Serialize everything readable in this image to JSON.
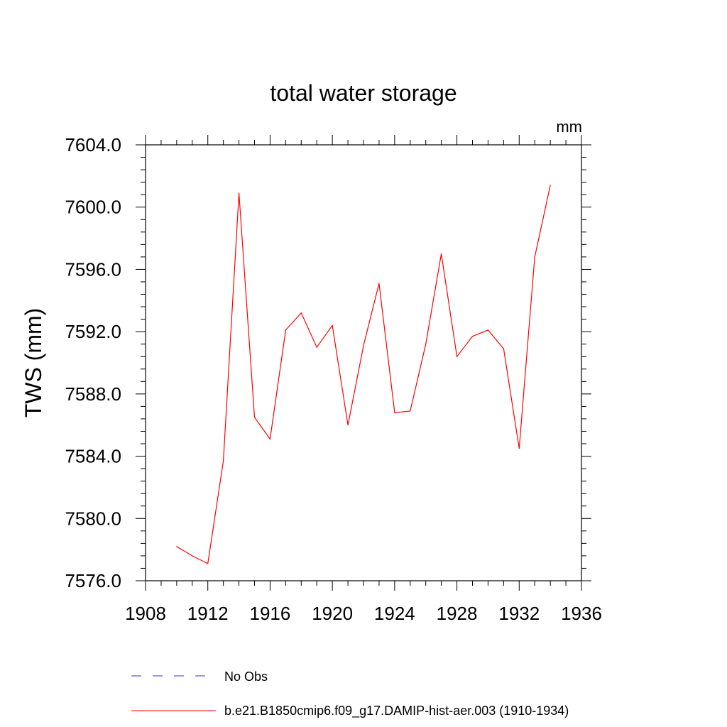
{
  "chart_data": {
    "type": "line",
    "title": "total water storage",
    "units_label": "mm",
    "xlabel": "",
    "ylabel": "TWS  (mm)",
    "xlim": [
      1908,
      1936
    ],
    "ylim": [
      7576.0,
      7604.0
    ],
    "x_ticks": [
      "1908",
      "1912",
      "1916",
      "1920",
      "1924",
      "1928",
      "1932",
      "1936"
    ],
    "y_ticks": [
      "7576.0",
      "7580.0",
      "7584.0",
      "7588.0",
      "7592.0",
      "7596.0",
      "7600.0",
      "7604.0"
    ],
    "x_tick_values": [
      1908,
      1912,
      1916,
      1920,
      1924,
      1928,
      1932,
      1936
    ],
    "y_tick_values": [
      7576,
      7580,
      7584,
      7588,
      7592,
      7596,
      7600,
      7604
    ],
    "grid": false,
    "legend_position": "bottom",
    "series": [
      {
        "name": "b.e21.B1850cmip6.f09_g17.DAMIP-hist-aer.003 (1910-1934)",
        "color": "#ff0000",
        "style": "solid",
        "x": [
          1910,
          1911,
          1912,
          1913,
          1914,
          1915,
          1916,
          1917,
          1918,
          1919,
          1920,
          1921,
          1922,
          1923,
          1924,
          1925,
          1926,
          1927,
          1928,
          1929,
          1930,
          1931,
          1932,
          1933,
          1934
        ],
        "y": [
          7578.2,
          7577.6,
          7577.1,
          7583.7,
          7600.9,
          7586.5,
          7585.1,
          7592.1,
          7593.2,
          7591.0,
          7592.4,
          7586.0,
          7591.1,
          7595.1,
          7586.8,
          7586.9,
          7591.2,
          7597.0,
          7590.4,
          7591.7,
          7592.1,
          7590.9,
          7584.5,
          7596.8,
          7601.4
        ]
      }
    ],
    "legend": [
      {
        "label": "No Obs",
        "color": "#3333cc",
        "style": "dashed"
      },
      {
        "label": "b.e21.B1850cmip6.f09_g17.DAMIP-hist-aer.003 (1910-1934)",
        "color": "#ff0000",
        "style": "solid"
      }
    ]
  }
}
